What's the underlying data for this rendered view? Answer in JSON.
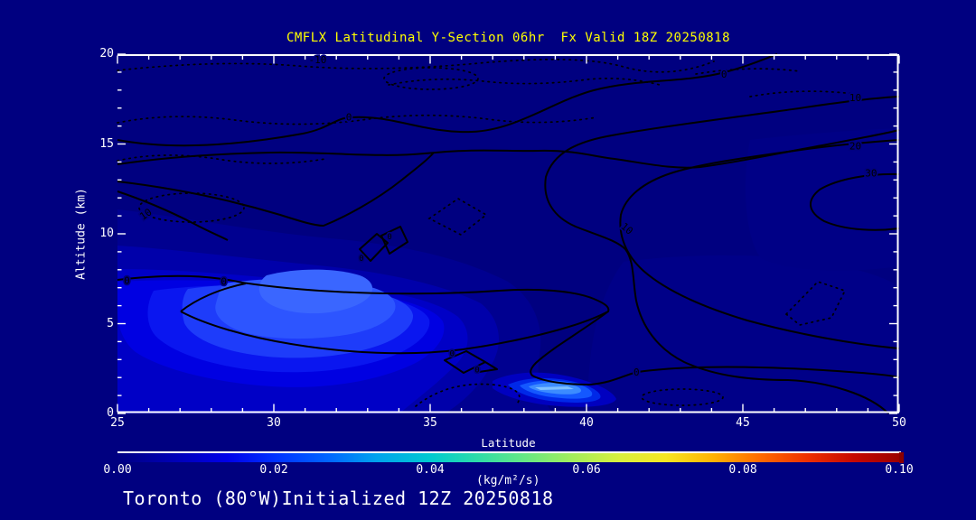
{
  "title": {
    "text": "CMFLX Latitudinal Y-Section 06hr  Fx Valid 18Z 20250818",
    "color": "#ffff00"
  },
  "footer": {
    "text": "Toronto (80°W)Initialized 12Z 20250818"
  },
  "model_run": {
    "variable": "CMFLX",
    "section": "Latitudinal Y-Section",
    "forecast_hour": "06hr",
    "valid": "18Z 20250818",
    "initialized": "12Z 20250818",
    "location": "Toronto (80°W)"
  },
  "axes": {
    "y": {
      "label": "Altitude (km)",
      "ticks": [
        "20",
        "15",
        "10",
        "5",
        "0"
      ]
    },
    "x": {
      "label": "Latitude",
      "ticks": [
        "25",
        "30",
        "35",
        "40",
        "45",
        "50"
      ]
    }
  },
  "colorbar": {
    "ticks": [
      "0.00",
      "0.02",
      "0.04",
      "0.06",
      "0.08",
      "0.10"
    ],
    "units": "(kg/m²/s)",
    "end_cap_color": "#8a0000",
    "gradient": [
      [
        "0%",
        "#000082"
      ],
      [
        "7%",
        "#0000b4"
      ],
      [
        "14%",
        "#0000e8"
      ],
      [
        "20%",
        "#0030ff"
      ],
      [
        "27%",
        "#0066ff"
      ],
      [
        "33%",
        "#00a2ee"
      ],
      [
        "40%",
        "#00cad0"
      ],
      [
        "46%",
        "#2edca8"
      ],
      [
        "52%",
        "#66e884"
      ],
      [
        "58%",
        "#a2ee5c"
      ],
      [
        "64%",
        "#d8f03e"
      ],
      [
        "70%",
        "#f6e622"
      ],
      [
        "76%",
        "#ffb202"
      ],
      [
        "82%",
        "#ff6a00"
      ],
      [
        "88%",
        "#ee3000"
      ],
      [
        "94%",
        "#c60800"
      ],
      [
        "100%",
        "#9a0000"
      ]
    ]
  },
  "palette": {
    "background": "#000080",
    "frame": "#ffffff",
    "title_color": "#ffff00",
    "text_color": "#ffffff",
    "contour_line": "#000000",
    "fill_levels": [
      "#000090",
      "#0000aa",
      "#0000c6",
      "#0000e2",
      "#0a16f0",
      "#1e3cfa",
      "#2d55ff",
      "#3a66ff"
    ],
    "streak_levels": [
      "#0000c0",
      "#0028e8",
      "#1458ff",
      "#3c8cff",
      "#7ec0ff"
    ]
  },
  "chart_data": {
    "type": "contour",
    "title": "CMFLX Latitudinal Y-Section 06hr  Fx Valid 18Z 20250818",
    "xlabel": "Latitude",
    "ylabel": "Altitude (km)",
    "xlim": [
      25,
      50
    ],
    "ylim": [
      0,
      20
    ],
    "x_ticks": [
      25,
      30,
      35,
      40,
      45,
      50
    ],
    "x_minor_tick_step": 1,
    "y_ticks": [
      0,
      5,
      10,
      15,
      20
    ],
    "y_minor_tick_step": 1,
    "grid": false,
    "colorbar_range": [
      0.0,
      0.1
    ],
    "colorbar_ticks": [
      0.0,
      0.02,
      0.04,
      0.06,
      0.08,
      0.1
    ],
    "colorbar_units": "(kg/m²/s)",
    "contour_levels": {
      "labeled_values": [
        -10,
        0,
        10,
        20,
        30
      ],
      "positive_style": "solid",
      "negative_style": "dotted"
    },
    "contour_labels": [
      {
        "value": "-10",
        "lat": 31.4,
        "alt": 19.7
      },
      {
        "value": "0",
        "lat": 32.4,
        "alt": 16.5
      },
      {
        "value": "0",
        "lat": 44.4,
        "alt": 18.9
      },
      {
        "value": "10",
        "lat": 48.6,
        "alt": 17.6
      },
      {
        "value": "20",
        "lat": 48.6,
        "alt": 14.9
      },
      {
        "value": "30",
        "lat": 49.1,
        "alt": 13.4
      },
      {
        "value": "10",
        "lat": 41.3,
        "alt": 10.3,
        "rot": 40
      },
      {
        "value": "10",
        "lat": 25.9,
        "alt": 11.1,
        "rot": -35
      },
      {
        "value": "0",
        "lat": 25.3,
        "alt": 7.4
      },
      {
        "value": "0",
        "lat": 28.4,
        "alt": 7.35
      },
      {
        "value": "0",
        "lat": 33.7,
        "alt": 9.9,
        "size": 9
      },
      {
        "value": "0",
        "lat": 32.8,
        "alt": 8.7,
        "size": 9
      },
      {
        "value": "0",
        "lat": 35.7,
        "alt": 3.4,
        "size": 9
      },
      {
        "value": "0",
        "lat": 36.5,
        "alt": 2.5,
        "size": 9
      },
      {
        "value": "0",
        "lat": 41.6,
        "alt": 2.3
      }
    ],
    "filled_features": [
      {
        "name": "broad shaded blue region",
        "lat_range": [
          25,
          35
        ],
        "alt_range": [
          0,
          9.5
        ],
        "peak_value": 0.012,
        "peak_lat": 28.5,
        "peak_alt": 6.8
      },
      {
        "name": "low-level bright streak",
        "lat_range": [
          37,
          39.6
        ],
        "alt_range": [
          0.4,
          2.2
        ],
        "peak_value": 0.035,
        "peak_lat": 38.5,
        "peak_alt": 1.3
      }
    ],
    "ridge": {
      "description": "positive contours 10-30 increasing toward right side",
      "center_lat": 48.5,
      "center_alt": 12.5
    }
  }
}
